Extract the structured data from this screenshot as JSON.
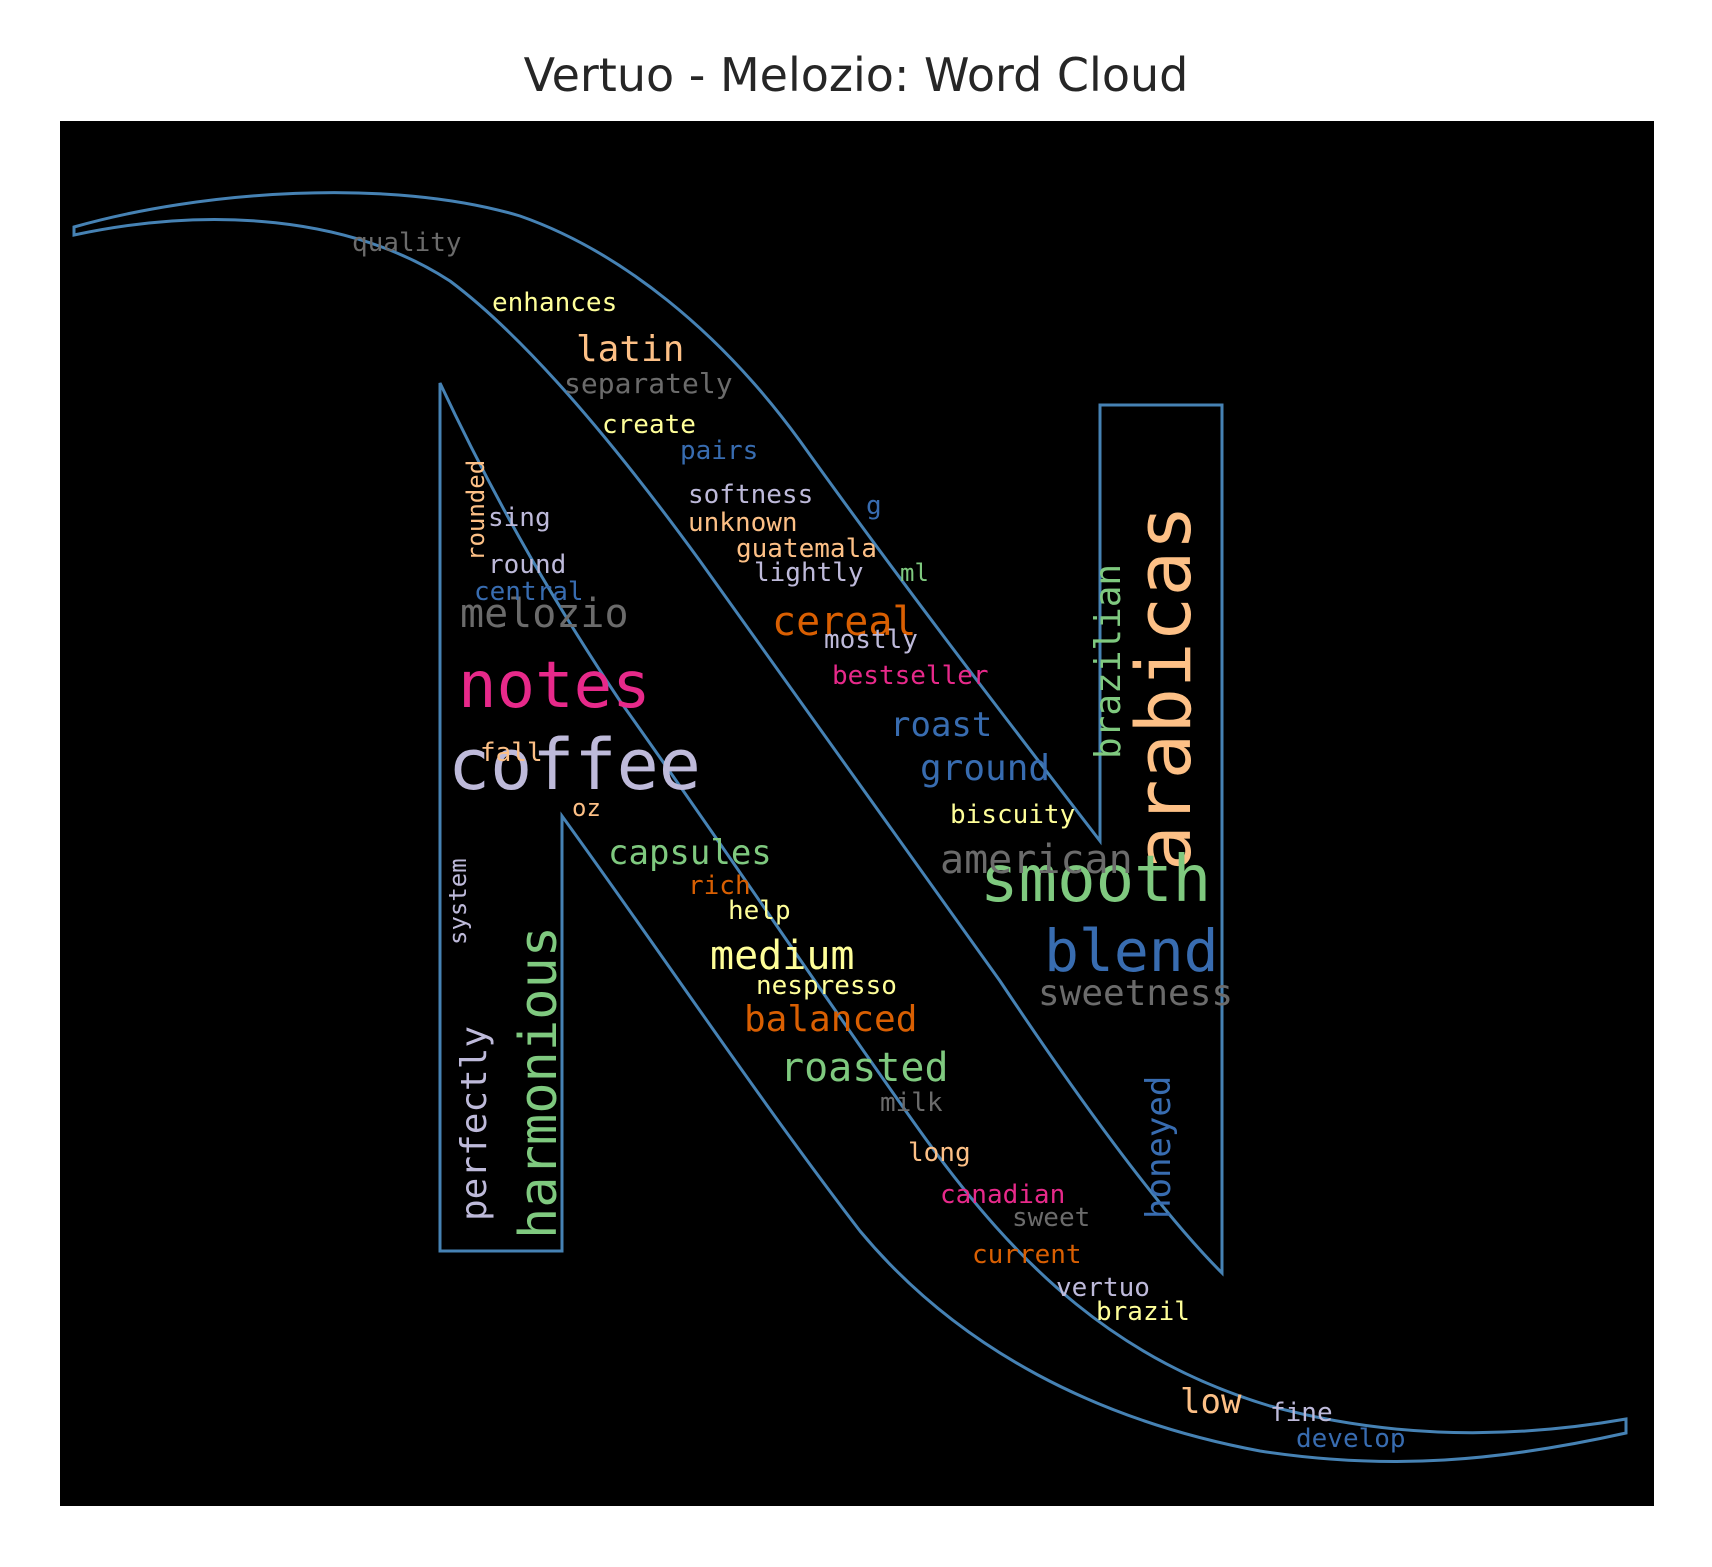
{
  "title": "Vertuo - Melozio: Word Cloud",
  "colors": {
    "background": "#000000",
    "outline": "#4682b4",
    "gray": "#6b6b6b",
    "pink": "#e7298a",
    "lavender": "#bebada",
    "green": "#7fc97f",
    "blue": "#386cb0",
    "peach": "#fdc086",
    "yellow": "#ffff99",
    "orange": "#d95f02"
  },
  "words": [
    {
      "text": "coffee",
      "color": "lavender"
    },
    {
      "text": "notes",
      "color": "pink"
    },
    {
      "text": "arabicas",
      "color": "peach"
    },
    {
      "text": "smooth",
      "color": "green"
    },
    {
      "text": "blend",
      "color": "blue"
    },
    {
      "text": "harmonious",
      "color": "green"
    },
    {
      "text": "melozio",
      "color": "gray"
    },
    {
      "text": "american",
      "color": "gray"
    },
    {
      "text": "cereal",
      "color": "orange"
    },
    {
      "text": "medium",
      "color": "yellow"
    },
    {
      "text": "roasted",
      "color": "green"
    },
    {
      "text": "perfectly",
      "color": "lavender"
    },
    {
      "text": "brazilian",
      "color": "green"
    },
    {
      "text": "honeyed",
      "color": "blue"
    },
    {
      "text": "balanced",
      "color": "orange"
    },
    {
      "text": "sweetness",
      "color": "gray"
    },
    {
      "text": "ground",
      "color": "blue"
    },
    {
      "text": "capsules",
      "color": "green"
    },
    {
      "text": "roast",
      "color": "blue"
    },
    {
      "text": "latin",
      "color": "peach"
    },
    {
      "text": "low",
      "color": "peach"
    },
    {
      "text": "separately",
      "color": "gray"
    },
    {
      "text": "enhances",
      "color": "yellow"
    },
    {
      "text": "quality",
      "color": "gray"
    },
    {
      "text": "create",
      "color": "yellow"
    },
    {
      "text": "pairs",
      "color": "blue"
    },
    {
      "text": "softness",
      "color": "lavender"
    },
    {
      "text": "unknown",
      "color": "peach"
    },
    {
      "text": "guatemala",
      "color": "peach"
    },
    {
      "text": "lightly",
      "color": "lavender"
    },
    {
      "text": "ml",
      "color": "green"
    },
    {
      "text": "g",
      "color": "blue"
    },
    {
      "text": "rounded",
      "color": "peach"
    },
    {
      "text": "sing",
      "color": "lavender"
    },
    {
      "text": "round",
      "color": "lavender"
    },
    {
      "text": "central",
      "color": "blue"
    },
    {
      "text": "mostly",
      "color": "lavender"
    },
    {
      "text": "bestseller",
      "color": "pink"
    },
    {
      "text": "fall",
      "color": "peach"
    },
    {
      "text": "biscuity",
      "color": "yellow"
    },
    {
      "text": "oz",
      "color": "peach"
    },
    {
      "text": "system",
      "color": "lavender"
    },
    {
      "text": "rich",
      "color": "orange"
    },
    {
      "text": "help",
      "color": "yellow"
    },
    {
      "text": "nespresso",
      "color": "yellow"
    },
    {
      "text": "milk",
      "color": "gray"
    },
    {
      "text": "long",
      "color": "peach"
    },
    {
      "text": "canadian",
      "color": "pink"
    },
    {
      "text": "sweet",
      "color": "gray"
    },
    {
      "text": "current",
      "color": "orange"
    },
    {
      "text": "vertuo",
      "color": "lavender"
    },
    {
      "text": "brazil",
      "color": "yellow"
    },
    {
      "text": "fine",
      "color": "lavender"
    },
    {
      "text": "develop",
      "color": "blue"
    }
  ]
}
